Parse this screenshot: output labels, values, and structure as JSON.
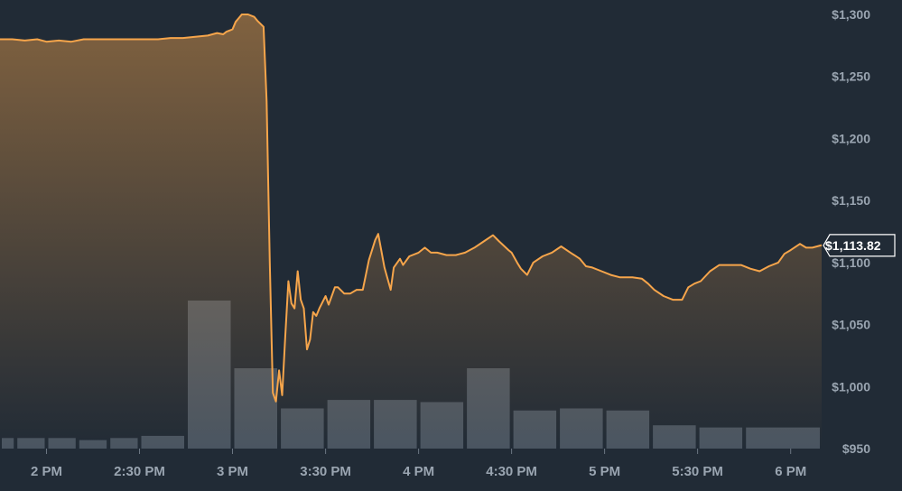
{
  "chart_data": {
    "type": "area",
    "title": "",
    "xlabel": "",
    "ylabel": "",
    "grid": false,
    "ylim": [
      950,
      1300
    ],
    "y_ticks": [
      950,
      1000,
      1050,
      1100,
      1150,
      1200,
      1250,
      1300
    ],
    "y_tick_labels": [
      "$950",
      "$1,000",
      "$1,050",
      "$1,100",
      "$1,150",
      "$1,200",
      "$1,250",
      "$1,300"
    ],
    "x_range": [
      "13:45",
      "18:10"
    ],
    "x_ticks": [
      "14:00",
      "14:30",
      "15:00",
      "15:30",
      "16:00",
      "16:30",
      "17:00",
      "17:30",
      "18:00"
    ],
    "x_tick_labels": [
      "2 PM",
      "2:30 PM",
      "3 PM",
      "3:30 PM",
      "4 PM",
      "4:30 PM",
      "5 PM",
      "5:30 PM",
      "6 PM"
    ],
    "current_price_label": "$1,113.82",
    "current_price": 1113.82,
    "colors": {
      "background": "#212b36",
      "line": "#f6a54b",
      "volume": "#4a5561",
      "text": "#9aa5b1"
    },
    "series": [
      {
        "price": [
          [
            "13:45",
            1280
          ],
          [
            "13:49",
            1280
          ],
          [
            "13:53",
            1279
          ],
          [
            "13:57",
            1280
          ],
          [
            "14:00",
            1278
          ],
          [
            "14:04",
            1279
          ],
          [
            "14:08",
            1278
          ],
          [
            "14:12",
            1280
          ],
          [
            "14:16",
            1280
          ],
          [
            "14:20",
            1280
          ],
          [
            "14:24",
            1280
          ],
          [
            "14:28",
            1280
          ],
          [
            "14:32",
            1280
          ],
          [
            "14:36",
            1280
          ],
          [
            "14:40",
            1281
          ],
          [
            "14:44",
            1281
          ],
          [
            "14:48",
            1282
          ],
          [
            "14:52",
            1283
          ],
          [
            "14:55",
            1285
          ],
          [
            "14:57",
            1284
          ],
          [
            "14:58",
            1286
          ],
          [
            "15:00",
            1288
          ],
          [
            "15:01",
            1294
          ],
          [
            "15:02",
            1297
          ],
          [
            "15:03",
            1300
          ],
          [
            "15:05",
            1300
          ],
          [
            "15:07",
            1298
          ],
          [
            "15:08",
            1295
          ],
          [
            "15:10",
            1290
          ],
          [
            "15:11",
            1230
          ],
          [
            "15:12",
            1100
          ],
          [
            "15:13",
            995
          ],
          [
            "15:14",
            988
          ],
          [
            "15:15",
            1013
          ],
          [
            "15:16",
            993
          ],
          [
            "15:17",
            1040
          ],
          [
            "15:18",
            1085
          ],
          [
            "15:19",
            1067
          ],
          [
            "15:20",
            1063
          ],
          [
            "15:21",
            1093
          ],
          [
            "15:22",
            1070
          ],
          [
            "15:23",
            1063
          ],
          [
            "15:24",
            1030
          ],
          [
            "15:25",
            1038
          ],
          [
            "15:26",
            1060
          ],
          [
            "15:27",
            1057
          ],
          [
            "15:28",
            1063
          ],
          [
            "15:30",
            1073
          ],
          [
            "15:31",
            1066
          ],
          [
            "15:33",
            1080
          ],
          [
            "15:34",
            1080
          ],
          [
            "15:36",
            1075
          ],
          [
            "15:38",
            1075
          ],
          [
            "15:40",
            1078
          ],
          [
            "15:42",
            1078
          ],
          [
            "15:44",
            1102
          ],
          [
            "15:46",
            1118
          ],
          [
            "15:47",
            1123
          ],
          [
            "15:49",
            1096
          ],
          [
            "15:51",
            1078
          ],
          [
            "15:52",
            1096
          ],
          [
            "15:54",
            1103
          ],
          [
            "15:55",
            1098
          ],
          [
            "15:57",
            1105
          ],
          [
            "16:00",
            1108
          ],
          [
            "16:02",
            1112
          ],
          [
            "16:04",
            1108
          ],
          [
            "16:06",
            1108
          ],
          [
            "16:09",
            1106
          ],
          [
            "16:12",
            1106
          ],
          [
            "16:15",
            1108
          ],
          [
            "16:18",
            1112
          ],
          [
            "16:21",
            1117
          ],
          [
            "16:24",
            1122
          ],
          [
            "16:26",
            1117
          ],
          [
            "16:29",
            1110
          ],
          [
            "16:30",
            1108
          ],
          [
            "16:32",
            1099
          ],
          [
            "16:33",
            1095
          ],
          [
            "16:35",
            1090
          ],
          [
            "16:37",
            1100
          ],
          [
            "16:40",
            1105
          ],
          [
            "16:43",
            1108
          ],
          [
            "16:46",
            1113
          ],
          [
            "16:49",
            1108
          ],
          [
            "16:52",
            1103
          ],
          [
            "16:54",
            1097
          ],
          [
            "16:56",
            1096
          ],
          [
            "16:59",
            1093
          ],
          [
            "17:02",
            1090
          ],
          [
            "17:05",
            1088
          ],
          [
            "17:09",
            1088
          ],
          [
            "17:12",
            1087
          ],
          [
            "17:14",
            1083
          ],
          [
            "17:16",
            1078
          ],
          [
            "17:19",
            1073
          ],
          [
            "17:22",
            1070
          ],
          [
            "17:25",
            1070
          ],
          [
            "17:27",
            1080
          ],
          [
            "17:29",
            1083
          ],
          [
            "17:31",
            1085
          ],
          [
            "17:34",
            1093
          ],
          [
            "17:37",
            1098
          ],
          [
            "17:40",
            1098
          ],
          [
            "17:44",
            1098
          ],
          [
            "17:47",
            1095
          ],
          [
            "17:50",
            1093
          ],
          [
            "17:53",
            1097
          ],
          [
            "17:56",
            1100
          ],
          [
            "17:58",
            1107
          ],
          [
            "18:00",
            1110
          ],
          [
            "18:03",
            1115
          ],
          [
            "18:05",
            1112
          ],
          [
            "18:07",
            1112
          ],
          [
            "18:10",
            1114
          ]
        ]
      },
      {
        "volume_bins": [
          [
            "13:45",
            5
          ],
          [
            "13:50",
            5
          ],
          [
            "14:00",
            5
          ],
          [
            "14:10",
            4
          ],
          [
            "14:20",
            5
          ],
          [
            "14:30",
            6
          ],
          [
            "14:45",
            70
          ],
          [
            "15:00",
            38
          ],
          [
            "15:15",
            19
          ],
          [
            "15:30",
            23
          ],
          [
            "15:45",
            23
          ],
          [
            "16:00",
            22
          ],
          [
            "16:15",
            38
          ],
          [
            "16:30",
            18
          ],
          [
            "16:45",
            19
          ],
          [
            "17:00",
            18
          ],
          [
            "17:15",
            11
          ],
          [
            "17:30",
            10
          ],
          [
            "17:45",
            10
          ]
        ]
      }
    ]
  }
}
